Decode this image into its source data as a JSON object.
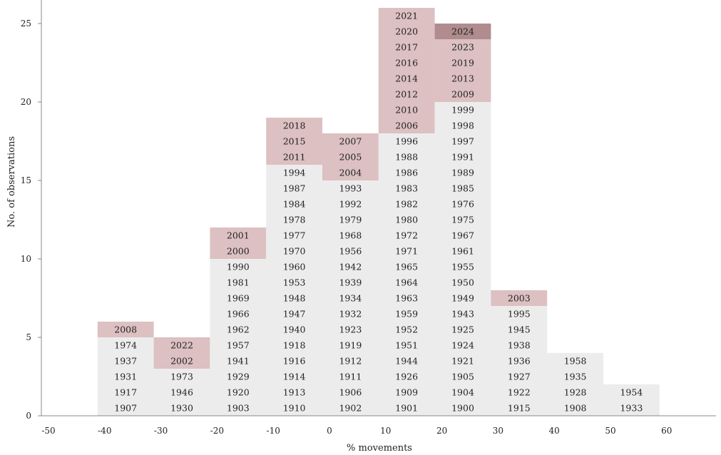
{
  "chart_data": {
    "type": "histogram",
    "title": "",
    "xlabel": "% movements",
    "ylabel": "No. of observations",
    "xlim": [
      -50,
      70
    ],
    "ylim": [
      0,
      26
    ],
    "x_ticks": [
      "-50",
      "-40",
      "-30",
      "-20",
      "-10",
      "0",
      "10",
      "20",
      "30",
      "40",
      "50",
      "60"
    ],
    "y_ticks": [
      "0",
      "5",
      "10",
      "15",
      "20",
      "25"
    ],
    "grid": false,
    "legend": "none",
    "colors": {
      "normal": "#ececec",
      "highlight": "#dcc0c2",
      "latest": "#b08c8e"
    },
    "bins": [
      {
        "range": [
          -40,
          -30
        ],
        "years": [
          {
            "label": "1907",
            "category": "normal"
          },
          {
            "label": "1917",
            "category": "normal"
          },
          {
            "label": "1931",
            "category": "normal"
          },
          {
            "label": "1937",
            "category": "normal"
          },
          {
            "label": "1974",
            "category": "normal"
          },
          {
            "label": "2008",
            "category": "highlight"
          }
        ]
      },
      {
        "range": [
          -30,
          -20
        ],
        "years": [
          {
            "label": "1930",
            "category": "normal"
          },
          {
            "label": "1946",
            "category": "normal"
          },
          {
            "label": "1973",
            "category": "normal"
          },
          {
            "label": "2002",
            "category": "highlight"
          },
          {
            "label": "2022",
            "category": "highlight"
          }
        ]
      },
      {
        "range": [
          -20,
          -10
        ],
        "years": [
          {
            "label": "1903",
            "category": "normal"
          },
          {
            "label": "1920",
            "category": "normal"
          },
          {
            "label": "1929",
            "category": "normal"
          },
          {
            "label": "1941",
            "category": "normal"
          },
          {
            "label": "1957",
            "category": "normal"
          },
          {
            "label": "1962",
            "category": "normal"
          },
          {
            "label": "1966",
            "category": "normal"
          },
          {
            "label": "1969",
            "category": "normal"
          },
          {
            "label": "1981",
            "category": "normal"
          },
          {
            "label": "1990",
            "category": "normal"
          },
          {
            "label": "2000",
            "category": "highlight"
          },
          {
            "label": "2001",
            "category": "highlight"
          }
        ]
      },
      {
        "range": [
          -10,
          0
        ],
        "years": [
          {
            "label": "1910",
            "category": "normal"
          },
          {
            "label": "1913",
            "category": "normal"
          },
          {
            "label": "1914",
            "category": "normal"
          },
          {
            "label": "1916",
            "category": "normal"
          },
          {
            "label": "1918",
            "category": "normal"
          },
          {
            "label": "1940",
            "category": "normal"
          },
          {
            "label": "1947",
            "category": "normal"
          },
          {
            "label": "1948",
            "category": "normal"
          },
          {
            "label": "1953",
            "category": "normal"
          },
          {
            "label": "1960",
            "category": "normal"
          },
          {
            "label": "1970",
            "category": "normal"
          },
          {
            "label": "1977",
            "category": "normal"
          },
          {
            "label": "1978",
            "category": "normal"
          },
          {
            "label": "1984",
            "category": "normal"
          },
          {
            "label": "1987",
            "category": "normal"
          },
          {
            "label": "1994",
            "category": "normal"
          },
          {
            "label": "2011",
            "category": "highlight"
          },
          {
            "label": "2015",
            "category": "highlight"
          },
          {
            "label": "2018",
            "category": "highlight"
          }
        ]
      },
      {
        "range": [
          0,
          10
        ],
        "years": [
          {
            "label": "1902",
            "category": "normal"
          },
          {
            "label": "1906",
            "category": "normal"
          },
          {
            "label": "1911",
            "category": "normal"
          },
          {
            "label": "1912",
            "category": "normal"
          },
          {
            "label": "1919",
            "category": "normal"
          },
          {
            "label": "1923",
            "category": "normal"
          },
          {
            "label": "1932",
            "category": "normal"
          },
          {
            "label": "1934",
            "category": "normal"
          },
          {
            "label": "1939",
            "category": "normal"
          },
          {
            "label": "1942",
            "category": "normal"
          },
          {
            "label": "1956",
            "category": "normal"
          },
          {
            "label": "1968",
            "category": "normal"
          },
          {
            "label": "1979",
            "category": "normal"
          },
          {
            "label": "1992",
            "category": "normal"
          },
          {
            "label": "1993",
            "category": "normal"
          },
          {
            "label": "2004",
            "category": "highlight"
          },
          {
            "label": "2005",
            "category": "highlight"
          },
          {
            "label": "2007",
            "category": "highlight"
          }
        ]
      },
      {
        "range": [
          10,
          20
        ],
        "years": [
          {
            "label": "1901",
            "category": "normal"
          },
          {
            "label": "1909",
            "category": "normal"
          },
          {
            "label": "1926",
            "category": "normal"
          },
          {
            "label": "1944",
            "category": "normal"
          },
          {
            "label": "1951",
            "category": "normal"
          },
          {
            "label": "1952",
            "category": "normal"
          },
          {
            "label": "1959",
            "category": "normal"
          },
          {
            "label": "1963",
            "category": "normal"
          },
          {
            "label": "1964",
            "category": "normal"
          },
          {
            "label": "1965",
            "category": "normal"
          },
          {
            "label": "1971",
            "category": "normal"
          },
          {
            "label": "1972",
            "category": "normal"
          },
          {
            "label": "1980",
            "category": "normal"
          },
          {
            "label": "1982",
            "category": "normal"
          },
          {
            "label": "1983",
            "category": "normal"
          },
          {
            "label": "1986",
            "category": "normal"
          },
          {
            "label": "1988",
            "category": "normal"
          },
          {
            "label": "1996",
            "category": "normal"
          },
          {
            "label": "2006",
            "category": "highlight"
          },
          {
            "label": "2010",
            "category": "highlight"
          },
          {
            "label": "2012",
            "category": "highlight"
          },
          {
            "label": "2014",
            "category": "highlight"
          },
          {
            "label": "2016",
            "category": "highlight"
          },
          {
            "label": "2017",
            "category": "highlight"
          },
          {
            "label": "2020",
            "category": "highlight"
          },
          {
            "label": "2021",
            "category": "highlight"
          }
        ]
      },
      {
        "range": [
          20,
          30
        ],
        "years": [
          {
            "label": "1900",
            "category": "normal"
          },
          {
            "label": "1904",
            "category": "normal"
          },
          {
            "label": "1905",
            "category": "normal"
          },
          {
            "label": "1921",
            "category": "normal"
          },
          {
            "label": "1924",
            "category": "normal"
          },
          {
            "label": "1925",
            "category": "normal"
          },
          {
            "label": "1943",
            "category": "normal"
          },
          {
            "label": "1949",
            "category": "normal"
          },
          {
            "label": "1950",
            "category": "normal"
          },
          {
            "label": "1955",
            "category": "normal"
          },
          {
            "label": "1961",
            "category": "normal"
          },
          {
            "label": "1967",
            "category": "normal"
          },
          {
            "label": "1975",
            "category": "normal"
          },
          {
            "label": "1976",
            "category": "normal"
          },
          {
            "label": "1985",
            "category": "normal"
          },
          {
            "label": "1989",
            "category": "normal"
          },
          {
            "label": "1991",
            "category": "normal"
          },
          {
            "label": "1997",
            "category": "normal"
          },
          {
            "label": "1998",
            "category": "normal"
          },
          {
            "label": "1999",
            "category": "normal"
          },
          {
            "label": "2009",
            "category": "highlight"
          },
          {
            "label": "2013",
            "category": "highlight"
          },
          {
            "label": "2019",
            "category": "highlight"
          },
          {
            "label": "2023",
            "category": "highlight"
          },
          {
            "label": "2024",
            "category": "latest"
          }
        ]
      },
      {
        "range": [
          30,
          40
        ],
        "years": [
          {
            "label": "1915",
            "category": "normal"
          },
          {
            "label": "1922",
            "category": "normal"
          },
          {
            "label": "1927",
            "category": "normal"
          },
          {
            "label": "1936",
            "category": "normal"
          },
          {
            "label": "1938",
            "category": "normal"
          },
          {
            "label": "1945",
            "category": "normal"
          },
          {
            "label": "1995",
            "category": "normal"
          },
          {
            "label": "2003",
            "category": "highlight"
          }
        ]
      },
      {
        "range": [
          40,
          50
        ],
        "years": [
          {
            "label": "1908",
            "category": "normal"
          },
          {
            "label": "1928",
            "category": "normal"
          },
          {
            "label": "1935",
            "category": "normal"
          },
          {
            "label": "1958",
            "category": "normal"
          }
        ]
      },
      {
        "range": [
          50,
          60
        ],
        "years": [
          {
            "label": "1933",
            "category": "normal"
          },
          {
            "label": "1954",
            "category": "normal"
          }
        ]
      }
    ]
  }
}
